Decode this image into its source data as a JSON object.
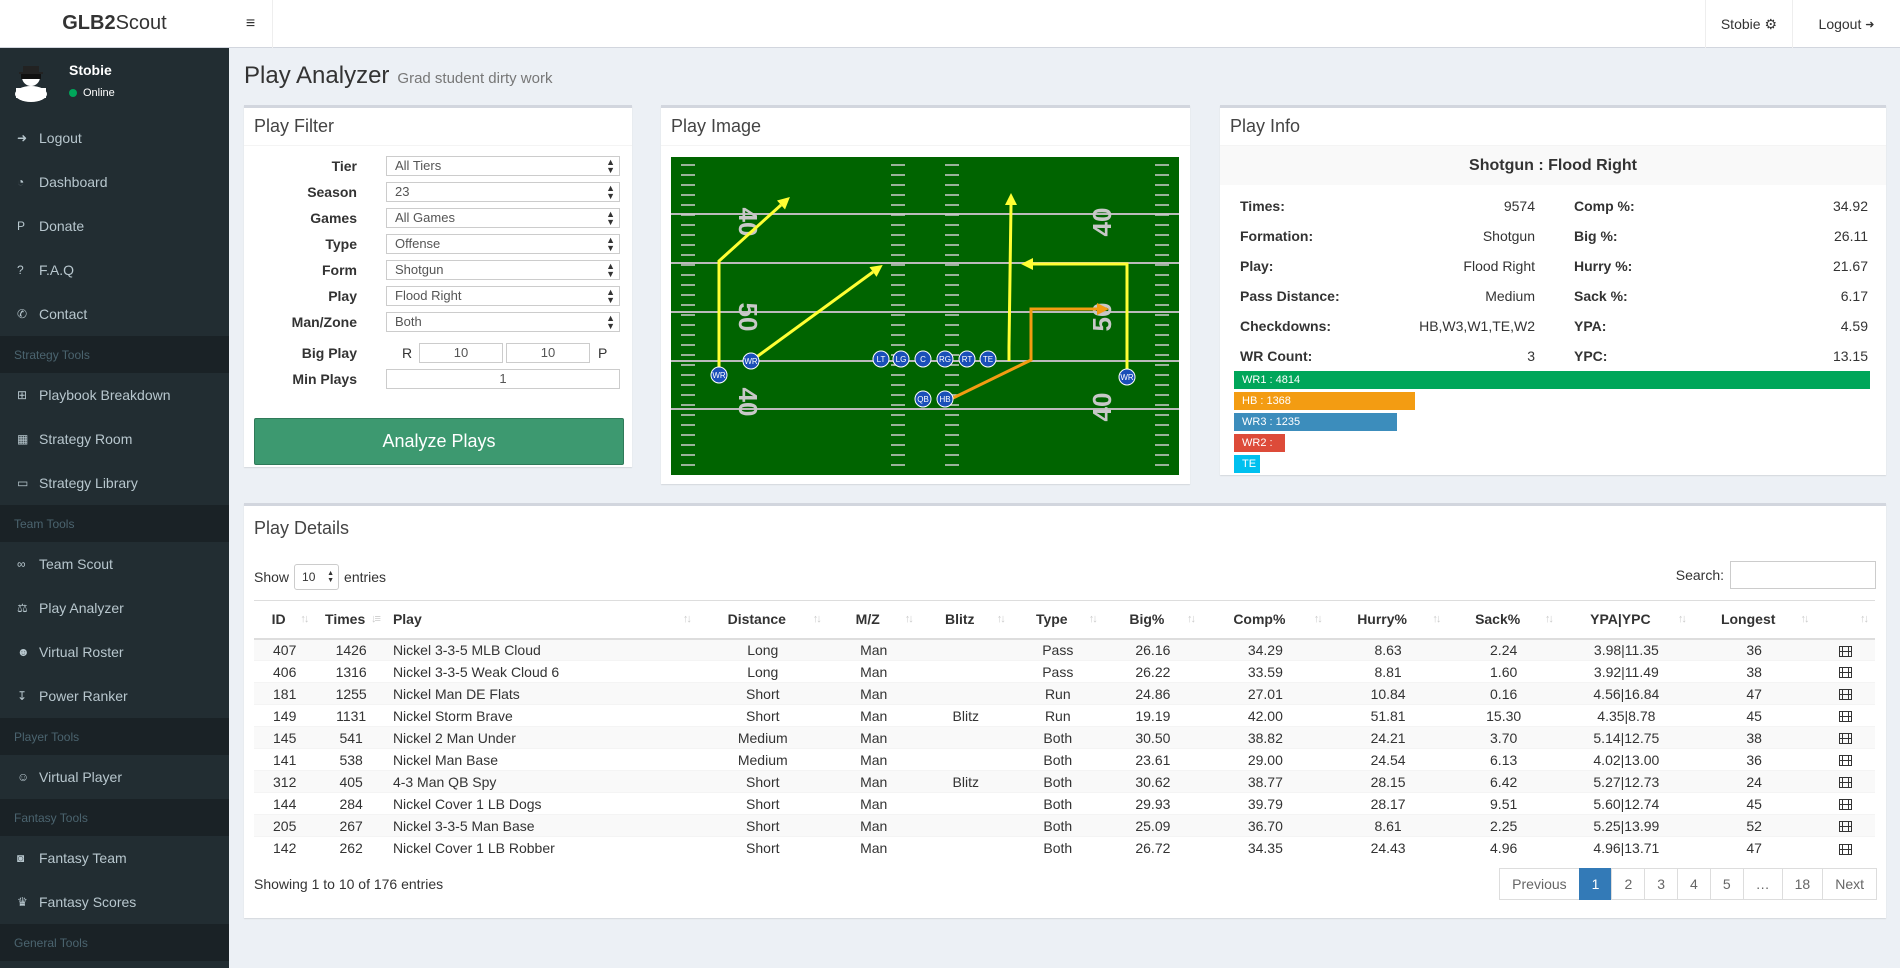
{
  "app": {
    "logo_bold": "GLB2",
    "logo_rest": "Scout"
  },
  "topbar": {
    "menu_toggle": "≡",
    "user_label": "Stobie",
    "user_icon": "⚙",
    "logout_label": "Logout",
    "logout_icon": "➜"
  },
  "sidebar": {
    "user": {
      "name": "Stobie",
      "status": "Online"
    },
    "items_main": [
      {
        "label": "Logout",
        "icon": "logout-icon",
        "glyph": "➜"
      },
      {
        "label": "Dashboard",
        "icon": "dashboard-icon",
        "glyph": "◔"
      },
      {
        "label": "Donate",
        "icon": "paypal-icon",
        "glyph": "P"
      },
      {
        "label": "F.A.Q",
        "icon": "question-icon",
        "glyph": "?"
      },
      {
        "label": "Contact",
        "icon": "phone-icon",
        "glyph": "✆"
      }
    ],
    "header_strategy": "Strategy Tools",
    "items_strategy": [
      {
        "label": "Playbook Breakdown",
        "icon": "sitemap-icon",
        "glyph": "⊞"
      },
      {
        "label": "Strategy Room",
        "icon": "grid-icon",
        "glyph": "▦"
      },
      {
        "label": "Strategy Library",
        "icon": "folder-open-icon",
        "glyph": "▭"
      }
    ],
    "header_team": "Team Tools",
    "items_team": [
      {
        "label": "Team Scout",
        "icon": "binoculars-icon",
        "glyph": "∞"
      },
      {
        "label": "Play Analyzer",
        "icon": "balance-scale-icon",
        "glyph": "⚖"
      },
      {
        "label": "Virtual Roster",
        "icon": "users-icon",
        "glyph": "☻"
      },
      {
        "label": "Power Ranker",
        "icon": "sort-amount-icon",
        "glyph": "↧"
      }
    ],
    "header_player": "Player Tools",
    "items_player": [
      {
        "label": "Virtual Player",
        "icon": "user-icon",
        "glyph": "☺"
      }
    ],
    "header_fantasy": "Fantasy Tools",
    "items_fantasy": [
      {
        "label": "Fantasy Team",
        "icon": "gamepad-icon",
        "glyph": "◙"
      },
      {
        "label": "Fantasy Scores",
        "icon": "trophy-icon",
        "glyph": "♛"
      }
    ],
    "header_general": "General Tools"
  },
  "page": {
    "title": "Play Analyzer",
    "subtitle": "Grad student dirty work"
  },
  "filter": {
    "title": "Play Filter",
    "rows": [
      {
        "label": "Tier",
        "value": "All Tiers"
      },
      {
        "label": "Season",
        "value": "23"
      },
      {
        "label": "Games",
        "value": "All Games"
      },
      {
        "label": "Type",
        "value": "Offense"
      },
      {
        "label": "Form",
        "value": "Shotgun"
      },
      {
        "label": "Play",
        "value": "Flood Right"
      },
      {
        "label": "Man/Zone",
        "value": "Both"
      }
    ],
    "big_play": {
      "label": "Big Play",
      "run_prefix": "R",
      "run_value": "10",
      "pass_value": "10",
      "pass_suffix": "P"
    },
    "min_plays": {
      "label": "Min Plays",
      "value": "1"
    },
    "analyze_label": "Analyze Plays"
  },
  "image": {
    "title": "Play Image",
    "yard_labels": [
      "40",
      "50",
      "40",
      "40",
      "50",
      "40"
    ],
    "players": [
      "WR",
      "WR",
      "LT",
      "LG",
      "C",
      "RG",
      "RT",
      "TE",
      "WR",
      "QB",
      "HB"
    ]
  },
  "info": {
    "title": "Play Info",
    "heading": "Shotgun : Flood Right",
    "left": [
      {
        "k": "Times:",
        "v": "9574"
      },
      {
        "k": "Formation:",
        "v": "Shotgun"
      },
      {
        "k": "Play:",
        "v": "Flood Right"
      },
      {
        "k": "Pass Distance:",
        "v": "Medium"
      },
      {
        "k": "Checkdowns:",
        "v": "HB,W3,W1,TE,W2"
      },
      {
        "k": "WR Count:",
        "v": "3"
      }
    ],
    "right": [
      {
        "k": "Comp %:",
        "v": "34.92"
      },
      {
        "k": "Big %:",
        "v": "26.11"
      },
      {
        "k": "Hurry %:",
        "v": "21.67"
      },
      {
        "k": "Sack %:",
        "v": "6.17"
      },
      {
        "k": "YPA:",
        "v": "4.59"
      },
      {
        "k": "YPC:",
        "v": "13.15"
      }
    ],
    "bars": [
      {
        "label": "WR1 : 4814",
        "frac": 1.0,
        "color": "#00a65a"
      },
      {
        "label": "HB : 1368",
        "frac": 0.284,
        "color": "#f39c12"
      },
      {
        "label": "WR3 : 1235",
        "frac": 0.256,
        "color": "#3c8dbc"
      },
      {
        "label": "WR2 :",
        "frac": 0.08,
        "color": "#dd4b39"
      },
      {
        "label": "TE",
        "frac": 0.04,
        "color": "#00c0ef"
      }
    ]
  },
  "details": {
    "title": "Play Details",
    "show_label": "Show",
    "length_value": "10",
    "entries_label": "entries",
    "search_label": "Search:",
    "columns": [
      "ID",
      "Times",
      "Play",
      "Distance",
      "M/Z",
      "Blitz",
      "Type",
      "Big%",
      "Comp%",
      "Hurry%",
      "Sack%",
      "YPA|YPC",
      "Longest",
      ""
    ],
    "rows": [
      [
        "407",
        "1426",
        "Nickel 3-3-5 MLB Cloud",
        "Long",
        "Man",
        "",
        "Pass",
        "26.16",
        "34.29",
        "8.63",
        "2.24",
        "3.98|11.35",
        "36"
      ],
      [
        "406",
        "1316",
        "Nickel 3-3-5 Weak Cloud 6",
        "Long",
        "Man",
        "",
        "Pass",
        "26.22",
        "33.59",
        "8.81",
        "1.60",
        "3.92|11.49",
        "38"
      ],
      [
        "181",
        "1255",
        "Nickel Man DE Flats",
        "Short",
        "Man",
        "",
        "Run",
        "24.86",
        "27.01",
        "10.84",
        "0.16",
        "4.56|16.84",
        "47"
      ],
      [
        "149",
        "1131",
        "Nickel Storm Brave",
        "Short",
        "Man",
        "Blitz",
        "Run",
        "19.19",
        "42.00",
        "51.81",
        "15.30",
        "4.35|8.78",
        "45"
      ],
      [
        "145",
        "541",
        "Nickel 2 Man Under",
        "Medium",
        "Man",
        "",
        "Both",
        "30.50",
        "38.82",
        "24.21",
        "3.70",
        "5.14|12.75",
        "38"
      ],
      [
        "141",
        "538",
        "Nickel Man Base",
        "Medium",
        "Man",
        "",
        "Both",
        "23.61",
        "29.00",
        "24.54",
        "6.13",
        "4.02|13.00",
        "36"
      ],
      [
        "312",
        "405",
        "4-3 Man QB Spy",
        "Short",
        "Man",
        "Blitz",
        "Both",
        "30.62",
        "38.77",
        "28.15",
        "6.42",
        "5.27|12.73",
        "24"
      ],
      [
        "144",
        "284",
        "Nickel Cover 1 LB Dogs",
        "Short",
        "Man",
        "",
        "Both",
        "29.93",
        "39.79",
        "28.17",
        "9.51",
        "5.60|12.74",
        "45"
      ],
      [
        "205",
        "267",
        "Nickel 3-3-5 Man Base",
        "Short",
        "Man",
        "",
        "Both",
        "25.09",
        "36.70",
        "8.61",
        "2.25",
        "5.25|13.99",
        "52"
      ],
      [
        "142",
        "262",
        "Nickel Cover 1 LB Robber",
        "Short",
        "Man",
        "",
        "Both",
        "26.72",
        "34.35",
        "24.43",
        "4.96",
        "4.96|13.71",
        "47"
      ]
    ],
    "summary": "Showing 1 to 10 of 176 entries",
    "pager": [
      "Previous",
      "1",
      "2",
      "3",
      "4",
      "5",
      "…",
      "18",
      "Next"
    ],
    "pager_active": "1"
  }
}
